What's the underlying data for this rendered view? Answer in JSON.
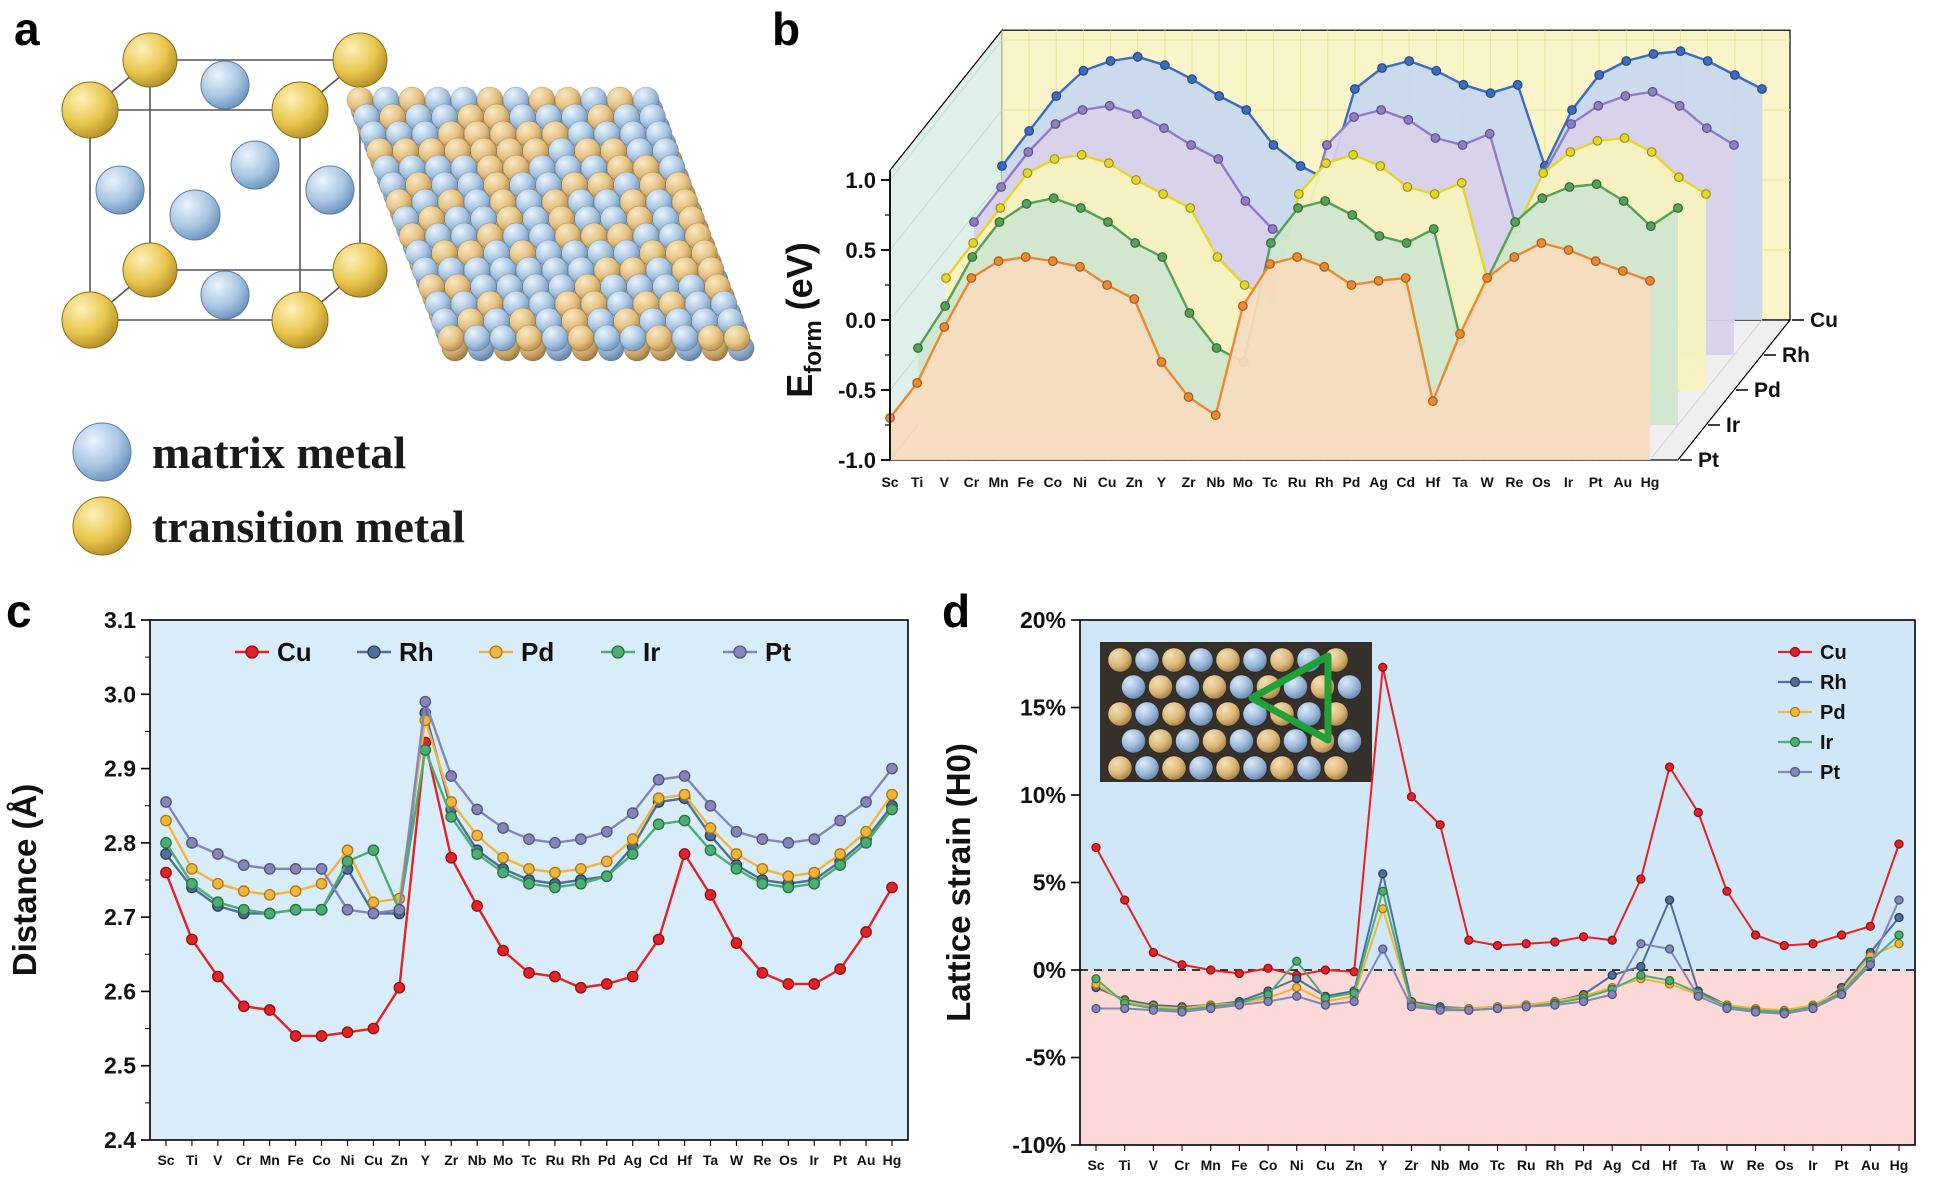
{
  "panels": {
    "a": {
      "label": "a",
      "legend_items": [
        {
          "label": "matrix metal",
          "color": "#9db9da"
        },
        {
          "label": "transition metal",
          "color": "#e6c047"
        }
      ]
    },
    "b": {
      "label": "b"
    },
    "c": {
      "label": "c"
    },
    "d": {
      "label": "d"
    }
  },
  "chart_data": [
    {
      "id": "eform",
      "type": "area",
      "projection": "3d-waterfall",
      "title": "",
      "xlabel": "",
      "ylabel_main": "E",
      "ylabel_sub": "form",
      "ylabel_unit": " (eV)",
      "ylim": [
        -1.0,
        1.0
      ],
      "yticks": [
        {
          "v": 1.0,
          "t": "1.0"
        },
        {
          "v": 0.5,
          "t": "0.5"
        },
        {
          "v": 0.0,
          "t": "0.0"
        },
        {
          "v": -0.5,
          "t": "-0.5"
        },
        {
          "v": -1.0,
          "t": "-1.0"
        }
      ],
      "walls": {
        "left": "#dff0ea",
        "back": "#faf5c8",
        "floor": "#efefef"
      },
      "categories": [
        "Sc",
        "Ti",
        "V",
        "Cr",
        "Mn",
        "Fe",
        "Co",
        "Ni",
        "Cu",
        "Zn",
        "Y",
        "Zr",
        "Nb",
        "Mo",
        "Tc",
        "Ru",
        "Rh",
        "Pd",
        "Ag",
        "Cd",
        "Hf",
        "Ta",
        "W",
        "Re",
        "Os",
        "Ir",
        "Pt",
        "Au",
        "Hg"
      ],
      "series": [
        {
          "name": "Cu",
          "line": "#3c6cc0",
          "fill": "#c7d7f0",
          "dark": "#27477e",
          "values": [
            0.1,
            0.35,
            0.6,
            0.78,
            0.85,
            0.88,
            0.82,
            0.72,
            0.6,
            0.5,
            0.25,
            0.1,
            0.0,
            0.65,
            0.8,
            0.85,
            0.78,
            0.68,
            0.62,
            0.68,
            0.1,
            0.5,
            0.75,
            0.85,
            0.9,
            0.92,
            0.85,
            0.75,
            0.65
          ]
        },
        {
          "name": "Rh",
          "line": "#8f7cc4",
          "fill": "#d9d1eb",
          "dark": "#5d4f86",
          "values": [
            -0.05,
            0.2,
            0.45,
            0.65,
            0.75,
            0.78,
            0.72,
            0.62,
            0.5,
            0.4,
            0.1,
            -0.1,
            -0.2,
            0.5,
            0.7,
            0.75,
            0.68,
            0.55,
            0.5,
            0.58,
            -0.1,
            0.3,
            0.65,
            0.78,
            0.85,
            0.88,
            0.78,
            0.62,
            0.5
          ]
        },
        {
          "name": "Pd",
          "line": "#e3d62e",
          "fill": "#f7f3bd",
          "dark": "#9c8f14",
          "values": [
            -0.2,
            0.05,
            0.3,
            0.55,
            0.65,
            0.68,
            0.62,
            0.5,
            0.4,
            0.3,
            -0.05,
            -0.25,
            -0.35,
            0.4,
            0.62,
            0.68,
            0.6,
            0.45,
            0.4,
            0.48,
            -0.25,
            0.15,
            0.55,
            0.7,
            0.78,
            0.8,
            0.7,
            0.52,
            0.4
          ]
        },
        {
          "name": "Ir",
          "line": "#57a05a",
          "fill": "#cfe6cd",
          "dark": "#2f6b33",
          "values": [
            -0.45,
            -0.15,
            0.2,
            0.45,
            0.58,
            0.62,
            0.55,
            0.45,
            0.3,
            0.2,
            -0.2,
            -0.45,
            -0.55,
            0.3,
            0.55,
            0.6,
            0.5,
            0.35,
            0.3,
            0.4,
            -0.4,
            0.05,
            0.45,
            0.62,
            0.7,
            0.72,
            0.6,
            0.42,
            0.55
          ]
        },
        {
          "name": "Pt",
          "line": "#e98a32",
          "fill": "#f8dcbd",
          "dark": "#a55a17",
          "values": [
            -0.7,
            -0.45,
            -0.05,
            0.3,
            0.42,
            0.45,
            0.42,
            0.38,
            0.25,
            0.15,
            -0.3,
            -0.55,
            -0.68,
            0.1,
            0.4,
            0.45,
            0.38,
            0.25,
            0.28,
            0.3,
            -0.58,
            -0.1,
            0.3,
            0.45,
            0.55,
            0.5,
            0.42,
            0.35,
            0.28
          ]
        }
      ]
    },
    {
      "id": "distance",
      "type": "line",
      "title": "",
      "xlabel": "",
      "ylabel": "Distance (Å)",
      "ylim": [
        2.4,
        3.1
      ],
      "background": "#d8ecf9",
      "legend_position": "top-row-inside",
      "yticks": [
        {
          "v": 2.4,
          "t": "2.4"
        },
        {
          "v": 2.5,
          "t": "2.5"
        },
        {
          "v": 2.6,
          "t": "2.6"
        },
        {
          "v": 2.7,
          "t": "2.7"
        },
        {
          "v": 2.8,
          "t": "2.8"
        },
        {
          "v": 2.9,
          "t": "2.9"
        },
        {
          "v": 3.0,
          "t": "3.0"
        },
        {
          "v": 3.1,
          "t": "3.1"
        }
      ],
      "categories": [
        "Sc",
        "Ti",
        "V",
        "Cr",
        "Mn",
        "Fe",
        "Co",
        "Ni",
        "Cu",
        "Zn",
        "Y",
        "Zr",
        "Nb",
        "Mo",
        "Tc",
        "Ru",
        "Rh",
        "Pd",
        "Ag",
        "Cd",
        "Hf",
        "Ta",
        "W",
        "Re",
        "Os",
        "Ir",
        "Pt",
        "Au",
        "Hg"
      ],
      "series": [
        {
          "name": "Cu",
          "color": "#e32226",
          "dark": "#8f1014",
          "values": [
            2.76,
            2.67,
            2.62,
            2.58,
            2.575,
            2.54,
            2.54,
            2.545,
            2.55,
            2.605,
            2.935,
            2.78,
            2.715,
            2.655,
            2.625,
            2.62,
            2.605,
            2.61,
            2.62,
            2.67,
            2.785,
            2.73,
            2.665,
            2.625,
            2.61,
            2.61,
            2.63,
            2.68,
            2.74
          ]
        },
        {
          "name": "Rh",
          "color": "#4f6f9a",
          "dark": "#2b3f59",
          "values": [
            2.785,
            2.74,
            2.715,
            2.705,
            2.705,
            2.71,
            2.71,
            2.765,
            2.705,
            2.705,
            2.975,
            2.845,
            2.79,
            2.765,
            2.75,
            2.745,
            2.75,
            2.755,
            2.795,
            2.855,
            2.86,
            2.81,
            2.77,
            2.75,
            2.745,
            2.75,
            2.775,
            2.805,
            2.85
          ]
        },
        {
          "name": "Pd",
          "color": "#f2b53a",
          "dark": "#a97715",
          "values": [
            2.83,
            2.765,
            2.745,
            2.735,
            2.73,
            2.735,
            2.745,
            2.79,
            2.72,
            2.725,
            2.965,
            2.855,
            2.81,
            2.78,
            2.765,
            2.76,
            2.765,
            2.775,
            2.805,
            2.86,
            2.865,
            2.82,
            2.785,
            2.765,
            2.755,
            2.76,
            2.785,
            2.815,
            2.865
          ]
        },
        {
          "name": "Ir",
          "color": "#4caf72",
          "dark": "#2a7047",
          "values": [
            2.8,
            2.745,
            2.72,
            2.71,
            2.705,
            2.71,
            2.71,
            2.775,
            2.79,
            2.71,
            2.925,
            2.835,
            2.785,
            2.76,
            2.745,
            2.74,
            2.745,
            2.755,
            2.785,
            2.825,
            2.83,
            2.79,
            2.765,
            2.745,
            2.74,
            2.745,
            2.77,
            2.8,
            2.845
          ]
        },
        {
          "name": "Pt",
          "color": "#8486b8",
          "dark": "#52547e",
          "values": [
            2.855,
            2.8,
            2.785,
            2.77,
            2.765,
            2.765,
            2.765,
            2.71,
            2.705,
            2.71,
            2.99,
            2.89,
            2.845,
            2.82,
            2.805,
            2.8,
            2.805,
            2.815,
            2.84,
            2.885,
            2.89,
            2.85,
            2.815,
            2.805,
            2.8,
            2.805,
            2.83,
            2.855,
            2.9
          ]
        }
      ]
    },
    {
      "id": "strain",
      "type": "line",
      "title": "",
      "xlabel": "",
      "ylabel": "Lattice strain (H0)",
      "ylim": [
        -10,
        20
      ],
      "zero_line": true,
      "legend_position": "top-right-inside",
      "bands": [
        {
          "from": 0,
          "to": 20,
          "color": "#cfe7f7"
        },
        {
          "from": -10,
          "to": 0,
          "color": "#fbd9d9"
        }
      ],
      "yticks": [
        {
          "v": -10,
          "t": "-10%"
        },
        {
          "v": -5,
          "t": "-5%"
        },
        {
          "v": 0,
          "t": "0%"
        },
        {
          "v": 5,
          "t": "5%"
        },
        {
          "v": 10,
          "t": "10%"
        },
        {
          "v": 15,
          "t": "15%"
        },
        {
          "v": 20,
          "t": "20%"
        }
      ],
      "inset_colors": {
        "bg": "#35302a",
        "tan": "#dcb87a",
        "blue": "#9db9da",
        "triangle": "#21a038"
      },
      "categories": [
        "Sc",
        "Ti",
        "V",
        "Cr",
        "Mn",
        "Fe",
        "Co",
        "Ni",
        "Cu",
        "Zn",
        "Y",
        "Zr",
        "Nb",
        "Mo",
        "Tc",
        "Ru",
        "Rh",
        "Pd",
        "Ag",
        "Cd",
        "Hf",
        "Ta",
        "W",
        "Re",
        "Os",
        "Ir",
        "Pt",
        "Au",
        "Hg"
      ],
      "series": [
        {
          "name": "Cu",
          "color": "#e32226",
          "dark": "#8f1014",
          "values": [
            7.0,
            4.0,
            1.0,
            0.3,
            0.0,
            -0.2,
            0.1,
            -0.3,
            0.0,
            -0.1,
            17.3,
            9.9,
            8.3,
            1.7,
            1.4,
            1.5,
            1.6,
            1.9,
            1.7,
            5.2,
            11.6,
            9.0,
            4.5,
            2.0,
            1.4,
            1.5,
            2.0,
            2.5,
            7.2
          ]
        },
        {
          "name": "Rh",
          "color": "#4f6f9a",
          "dark": "#2b3f59",
          "values": [
            -1.0,
            -1.7,
            -2.0,
            -2.1,
            -2.0,
            -1.8,
            -1.2,
            -0.5,
            -1.5,
            -1.2,
            5.5,
            -1.8,
            -2.1,
            -2.2,
            -2.1,
            -2.0,
            -1.8,
            -1.4,
            -0.3,
            0.2,
            4.0,
            -1.2,
            -2.0,
            -2.4,
            -2.5,
            -2.2,
            -1.0,
            1.0,
            3.0
          ]
        },
        {
          "name": "Pd",
          "color": "#f2b53a",
          "dark": "#a97715",
          "values": [
            -0.8,
            -1.8,
            -2.1,
            -2.2,
            -2.0,
            -1.9,
            -1.6,
            -1.0,
            -1.8,
            -1.5,
            3.5,
            -1.9,
            -2.2,
            -2.2,
            -2.1,
            -2.0,
            -1.8,
            -1.5,
            -1.0,
            -0.5,
            -0.8,
            -1.4,
            -2.0,
            -2.2,
            -2.3,
            -2.0,
            -1.2,
            0.8,
            1.5
          ]
        },
        {
          "name": "Ir",
          "color": "#4caf72",
          "dark": "#2a7047",
          "values": [
            -0.5,
            -1.9,
            -2.2,
            -2.3,
            -2.1,
            -1.9,
            -1.4,
            0.5,
            -1.6,
            -1.3,
            4.5,
            -2.0,
            -2.2,
            -2.3,
            -2.2,
            -2.1,
            -1.9,
            -1.6,
            -1.1,
            -0.3,
            -0.6,
            -1.3,
            -2.1,
            -2.3,
            -2.4,
            -2.1,
            -1.3,
            0.5,
            2.0
          ]
        },
        {
          "name": "Pt",
          "color": "#8486b8",
          "dark": "#52547e",
          "values": [
            -2.2,
            -2.2,
            -2.3,
            -2.4,
            -2.2,
            -2.0,
            -1.8,
            -1.5,
            -2.0,
            -1.8,
            1.2,
            -2.1,
            -2.3,
            -2.3,
            -2.2,
            -2.1,
            -2.0,
            -1.8,
            -1.4,
            1.5,
            1.2,
            -1.5,
            -2.2,
            -2.4,
            -2.5,
            -2.2,
            -1.4,
            0.3,
            4.0
          ]
        }
      ]
    }
  ]
}
